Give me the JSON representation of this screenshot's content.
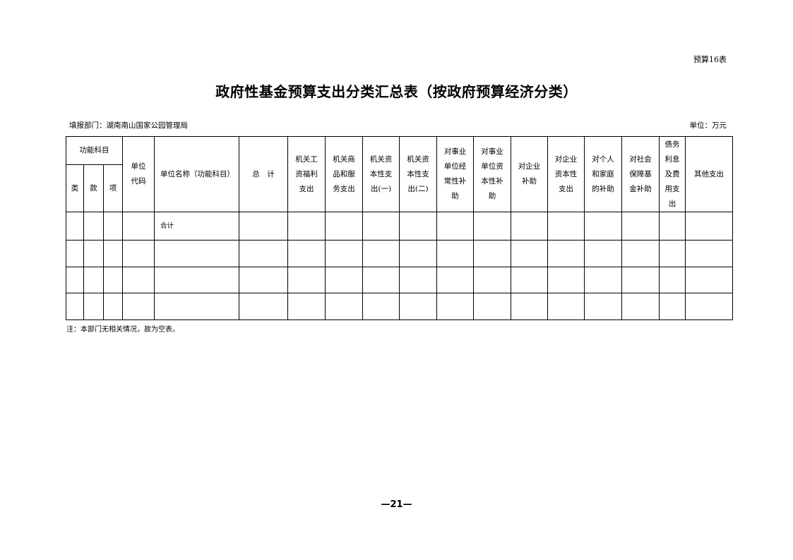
{
  "form_number": "预算16表",
  "title": "政府性基金预算支出分类汇总表（按政府预算经济分类）",
  "reporting_department": "填报部门：湖南南山国家公园管理局",
  "unit": "单位：万元",
  "table": {
    "group_header": "功能科目",
    "sub_headers": [
      "类",
      "款",
      "项"
    ],
    "unit_code": "单位代码",
    "unit_name": "单位名称（功能科目）",
    "total": "总　计",
    "columns": [
      "机关工资福利支出",
      "机关商品和服务支出",
      "机关资本性支出(一)",
      "机关资本性支出(二)",
      "对事业单位经常性补助",
      "对事业单位资本性补助",
      "对企业补助",
      "对企业资本性支出",
      "对个人和家庭的补助",
      "对社会保障基金补助",
      "债务利息及费用支出",
      "其他支出"
    ],
    "rows": [
      {
        "name": "合计"
      },
      {
        "name": ""
      },
      {
        "name": ""
      },
      {
        "name": ""
      }
    ]
  },
  "note": "注：本部门无相关情况，故为空表。",
  "page_number": "—21—"
}
